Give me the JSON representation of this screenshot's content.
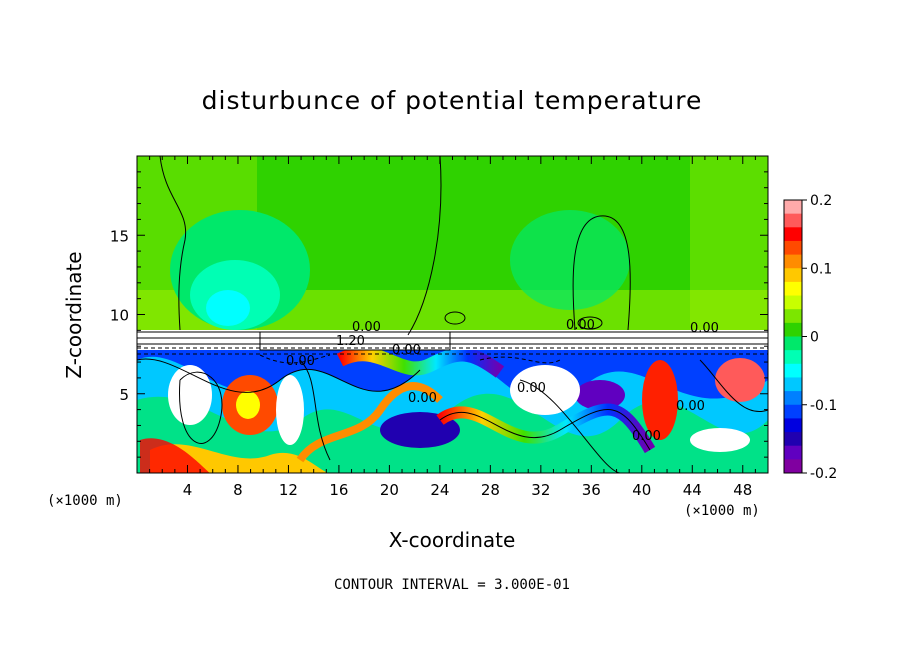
{
  "chart_data": {
    "type": "heatmap",
    "title": "disturbunce of potential temperature",
    "xlabel": "X-coordinate",
    "ylabel": "Z-coordinate",
    "x_unit": "(×1000 m)",
    "x_unit_right": "(×1000 m)",
    "x_ticks": [
      4,
      8,
      12,
      16,
      20,
      24,
      28,
      32,
      36,
      40,
      44,
      48
    ],
    "y_ticks": [
      5,
      10,
      15
    ],
    "xlim": [
      0,
      50
    ],
    "ylim": [
      0,
      20
    ],
    "colorbar": {
      "ticks": [
        "0.2",
        "0.1",
        "0",
        "-0.1",
        "-0.2"
      ],
      "range": [
        -0.2,
        0.2
      ],
      "colors": [
        "#ffaaaa",
        "#ff5a5a",
        "#ff0000",
        "#ff4a00",
        "#ff8c00",
        "#ffc800",
        "#ffff00",
        "#c8ff00",
        "#7ce600",
        "#2fd200",
        "#00e86a",
        "#00ffb4",
        "#00ffff",
        "#00c8ff",
        "#0080ff",
        "#0040ff",
        "#0000e0",
        "#2000b0",
        "#6000c0",
        "#8000a0"
      ]
    },
    "contour_labels": [
      "0.00",
      "1.20",
      "0.00",
      "0.00",
      "0.00",
      "0.00",
      "0.00",
      "0.00",
      "0.00",
      "0.00"
    ],
    "contour_interval": "CONTOUR INTERVAL = 3.000E-01"
  }
}
